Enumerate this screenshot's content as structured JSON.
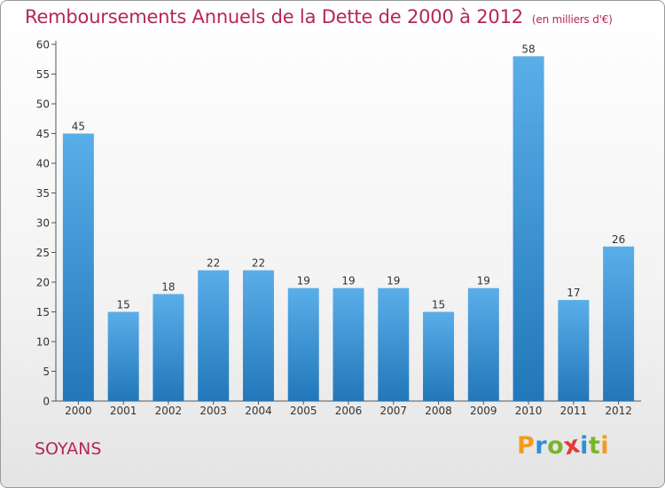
{
  "title": "Remboursements Annuels de la Dette de 2000 à 2012",
  "subtitle": "(en milliers d'€)",
  "commune": "SOYANS",
  "logo": {
    "letters": [
      "P",
      "r",
      "o",
      "x",
      "i",
      "t",
      "i"
    ],
    "colors": [
      "#f39c1f",
      "#2f8fd8",
      "#7bb52b",
      "#e23a3a",
      "#2f8fd8",
      "#7bb52b",
      "#f39c1f"
    ]
  },
  "colors": {
    "accent": "#b5265c",
    "bar_top": "#5aaee8",
    "bar_bottom": "#2277ba"
  },
  "chart_data": {
    "type": "bar",
    "title": "Remboursements Annuels de la Dette de 2000 à 2012",
    "subtitle": "(en milliers d'€)",
    "categories": [
      "2000",
      "2001",
      "2002",
      "2003",
      "2004",
      "2005",
      "2006",
      "2007",
      "2008",
      "2009",
      "2010",
      "2011",
      "2012"
    ],
    "values": [
      45,
      15,
      18,
      22,
      22,
      19,
      19,
      19,
      15,
      19,
      58,
      17,
      26
    ],
    "ylim": [
      0,
      60
    ],
    "yticks": [
      0,
      5,
      10,
      15,
      20,
      25,
      30,
      35,
      40,
      45,
      50,
      55,
      60
    ],
    "grid": false,
    "data_labels": true
  }
}
